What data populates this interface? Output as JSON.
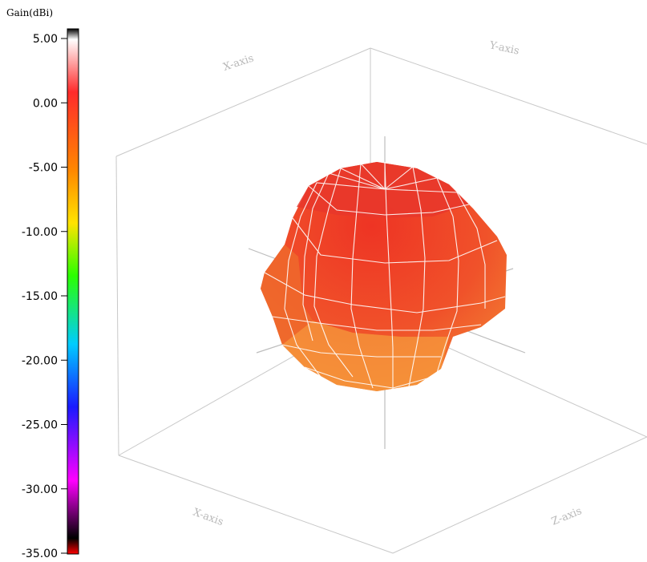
{
  "chart_data": {
    "type": "3d-surface",
    "colorbar": {
      "title": "Gain(dBi)",
      "ticks": [
        "5.00",
        "0.00",
        "-5.00",
        "-10.00",
        "-15.00",
        "-20.00",
        "-25.00",
        "-30.00",
        "-35.00"
      ],
      "range": [
        -35,
        5
      ],
      "colors": [
        "#000000",
        "#ffffff",
        "#ff1a1a",
        "#ff8a00",
        "#ffe000",
        "#23ff00",
        "#00d4ff",
        "#1010ff",
        "#ff00ff",
        "#000000"
      ]
    },
    "axes": {
      "x_title": "X-axis",
      "y_title": "Y-axis",
      "z_title": "Z-axis",
      "grid": true
    },
    "surface": {
      "description_colors": {
        "top": "#ee3a2a",
        "middle": "#f0552a",
        "lower": "#f37a30",
        "bottom": "#f6a040"
      },
      "gain_range_dbi": [
        -5,
        1
      ]
    }
  }
}
